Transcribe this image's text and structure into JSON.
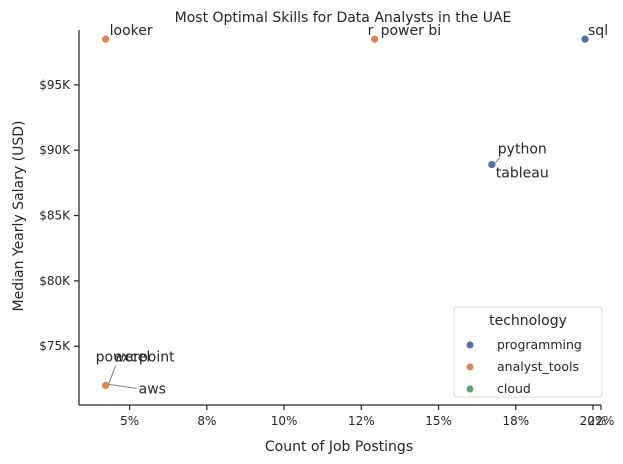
{
  "chart_data": {
    "type": "scatter",
    "title": "Most Optimal Skills for Data Analysts in the UAE",
    "xlabel": "Count of Job Postings",
    "ylabel": "Median Yearly Salary (USD)",
    "xlim": [
      2.7,
      22.3
    ],
    "ylim": [
      70500,
      99200
    ],
    "x_ticks": [
      {
        "value": 4.6,
        "label": "5%"
      },
      {
        "value": 7.5,
        "label": "8%"
      },
      {
        "value": 10.4,
        "label": "10%"
      },
      {
        "value": 13.3,
        "label": "12%"
      },
      {
        "value": 16.2,
        "label": "15%"
      },
      {
        "value": 19.1,
        "label": "18%"
      },
      {
        "value": 22.0,
        "label": "20%"
      },
      {
        "value": 24.9,
        "label": "22%"
      }
    ],
    "y_ticks": [
      {
        "value": 75000,
        "label": "$75K"
      },
      {
        "value": 80000,
        "label": "$80K"
      },
      {
        "value": 85000,
        "label": "$85K"
      },
      {
        "value": 90000,
        "label": "$90K"
      },
      {
        "value": 95000,
        "label": "$95K"
      }
    ],
    "legend": {
      "title": "technology",
      "placement": "lower-right",
      "entries": [
        {
          "name": "programming",
          "color": "#4c72b0"
        },
        {
          "name": "analyst_tools",
          "color": "#dd8452"
        },
        {
          "name": "cloud",
          "color": "#55a868"
        }
      ]
    },
    "points": [
      {
        "skill": "looker",
        "x": 3.7,
        "y": 98500,
        "technology": "analyst_tools"
      },
      {
        "skill": "power bi",
        "x": 13.8,
        "y": 98500,
        "technology": "analyst_tools"
      },
      {
        "skill": "r",
        "x": 13.8,
        "y": 98500,
        "technology": "analyst_tools"
      },
      {
        "skill": "sql",
        "x": 21.7,
        "y": 98500,
        "technology": "programming"
      },
      {
        "skill": "python",
        "x": 18.2,
        "y": 88900,
        "technology": "programming"
      },
      {
        "skill": "tableau",
        "x": 18.2,
        "y": 88900,
        "technology": "analyst_tools"
      },
      {
        "skill": "powerpoint",
        "x": 3.7,
        "y": 72000,
        "technology": "analyst_tools"
      },
      {
        "skill": "excel",
        "x": 3.7,
        "y": 72000,
        "technology": "analyst_tools"
      },
      {
        "skill": "aws",
        "x": 3.7,
        "y": 72000,
        "technology": "cloud"
      }
    ]
  }
}
